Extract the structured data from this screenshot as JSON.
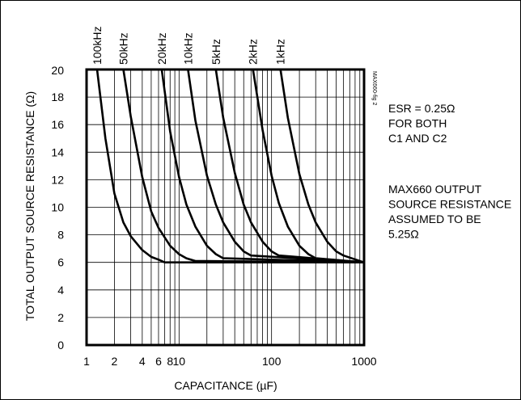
{
  "chart_data": {
    "type": "line",
    "title": "",
    "xlabel": "CAPACITANCE (µF)",
    "ylabel": "TOTAL OUTPUT SOURCE RESISTANCE (Ω)",
    "x_scale": "log",
    "xlim": [
      1,
      1000
    ],
    "ylim": [
      0,
      20
    ],
    "grid": true,
    "x_tick_labels": [
      "1",
      "2",
      "4",
      "6",
      "8",
      "10",
      "100",
      "1000"
    ],
    "x_ticks": [
      1,
      2,
      4,
      6,
      8,
      10,
      100,
      1000
    ],
    "y_tick_labels": [
      "0",
      "2",
      "4",
      "6",
      "8",
      "10",
      "12",
      "14",
      "16",
      "18",
      "20"
    ],
    "y_ticks": [
      0,
      2,
      4,
      6,
      8,
      10,
      12,
      14,
      16,
      18,
      20
    ],
    "series": [
      {
        "name": "100kHz",
        "x": [
          1.3,
          1.6,
          2.0,
          2.5,
          3.0,
          4.0,
          5.0,
          6.0,
          7.0,
          8.0,
          1000
        ],
        "y": [
          20,
          15,
          11,
          8.9,
          7.9,
          6.9,
          6.4,
          6.2,
          6.0,
          6.0,
          6.0
        ]
      },
      {
        "name": "50kHz",
        "x": [
          2.5,
          3.0,
          4.0,
          5.0,
          6.0,
          8.0,
          10,
          12,
          15,
          1000
        ],
        "y": [
          20,
          16.6,
          12.2,
          9.7,
          8.5,
          7.2,
          6.6,
          6.3,
          6.1,
          6.0
        ]
      },
      {
        "name": "20kHz",
        "x": [
          6.5,
          8.0,
          10,
          12,
          15,
          20,
          25,
          30,
          1000
        ],
        "y": [
          20,
          15.5,
          12.2,
          10.2,
          8.6,
          7.2,
          6.6,
          6.3,
          6.0
        ]
      },
      {
        "name": "10kHz",
        "x": [
          12.5,
          15,
          20,
          25,
          30,
          40,
          50,
          60,
          1000
        ],
        "y": [
          20,
          16.3,
          12.3,
          10.2,
          8.9,
          7.5,
          6.8,
          6.5,
          6.0
        ]
      },
      {
        "name": "5kHz",
        "x": [
          25,
          30,
          40,
          50,
          60,
          80,
          100,
          120,
          1000
        ],
        "y": [
          20,
          16.5,
          12.5,
          10.2,
          8.9,
          7.5,
          6.8,
          6.5,
          6.0
        ]
      },
      {
        "name": "2kHz",
        "x": [
          63,
          80,
          100,
          120,
          150,
          200,
          250,
          300,
          1000
        ],
        "y": [
          20,
          15.6,
          12.3,
          10.3,
          8.6,
          7.2,
          6.6,
          6.3,
          6.0
        ]
      },
      {
        "name": "1kHz",
        "x": [
          125,
          150,
          200,
          250,
          300,
          400,
          500,
          600,
          1000
        ],
        "y": [
          20,
          16.5,
          12.4,
          10.2,
          8.9,
          7.5,
          6.8,
          6.5,
          6.0
        ]
      }
    ],
    "annotations": [
      [
        "ESR = 0.25Ω",
        "FOR BOTH",
        "C1 AND C2"
      ],
      [
        "MAX660 OUTPUT",
        "SOURCE RESISTANCE",
        "ASSUMED TO BE",
        "5.25Ω"
      ]
    ],
    "figure_id": "MAX660-fig 2"
  }
}
